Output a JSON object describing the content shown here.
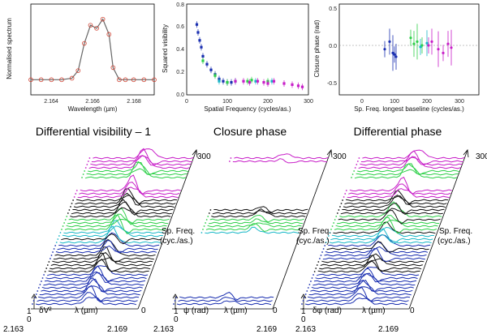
{
  "colors": {
    "spectrum": "#d04030",
    "blue": "#1a2fb0",
    "cyan": "#1bb8c8",
    "green": "#2fd04a",
    "magenta": "#c81ec8",
    "black": "#111111",
    "red": "#d02a10"
  },
  "chart_data": [
    {
      "type": "line",
      "title": "",
      "xlabel": "Wavelength (µm)",
      "ylabel": "Normalised spectrum",
      "xlim": [
        2.163,
        2.169
      ],
      "ylim": [
        0.95,
        1.25
      ],
      "xticks": [
        "2.164",
        "2.166",
        "2.168"
      ],
      "x": [
        2.163,
        2.1635,
        2.164,
        2.1645,
        2.165,
        2.1653,
        2.1656,
        2.1659,
        2.1662,
        2.1665,
        2.1668,
        2.167,
        2.1673,
        2.1676,
        2.168,
        2.1685,
        2.169
      ],
      "y": [
        1.0,
        1.0,
        1.0,
        1.0,
        1.005,
        1.03,
        1.12,
        1.18,
        1.17,
        1.2,
        1.15,
        1.04,
        1.0,
        1.0,
        1.0,
        1.0,
        1.0
      ]
    },
    {
      "type": "scatter",
      "title": "",
      "xlabel": "Spatial Frequency (cycles/as.)",
      "ylabel": "Squared visibility",
      "xlim": [
        0,
        300
      ],
      "ylim": [
        0,
        0.8
      ],
      "xticks": [
        "0",
        "100",
        "200",
        "300"
      ],
      "yticks": [
        "0.0",
        "0.2",
        "0.4",
        "0.6",
        "0.8"
      ],
      "series": [
        {
          "name": "blue",
          "x": [
            25,
            28,
            32,
            36,
            40,
            50,
            60,
            70,
            80,
            90,
            100,
            110
          ],
          "y": [
            0.62,
            0.55,
            0.48,
            0.42,
            0.34,
            0.27,
            0.22,
            0.18,
            0.14,
            0.12,
            0.11,
            0.11
          ]
        },
        {
          "name": "green",
          "x": [
            40,
            70,
            100,
            150,
            160,
            200
          ],
          "y": [
            0.3,
            0.17,
            0.11,
            0.12,
            0.13,
            0.12
          ]
        },
        {
          "name": "cyan",
          "x": [
            80,
            120,
            170,
            210
          ],
          "y": [
            0.12,
            0.12,
            0.12,
            0.12
          ]
        },
        {
          "name": "magenta",
          "x": [
            120,
            140,
            155,
            175,
            190,
            200,
            215,
            240,
            260,
            275,
            285
          ],
          "y": [
            0.12,
            0.12,
            0.11,
            0.12,
            0.11,
            0.1,
            0.12,
            0.1,
            0.09,
            0.08,
            0.07
          ]
        }
      ]
    },
    {
      "type": "scatter",
      "title": "",
      "xlabel": "Sp. Freq. longest baseline (cycles/as.)",
      "ylabel": "Closure phase (rad)",
      "xlim": [
        0,
        300
      ],
      "ylim": [
        -0.6,
        0.6
      ],
      "xticks": [
        "0",
        "100",
        "200",
        "300"
      ],
      "yticks": [
        "-0.5",
        "0.0",
        "0.5"
      ],
      "series": [
        {
          "name": "blue",
          "x": [
            70,
            85,
            95,
            100,
            105
          ],
          "y": [
            -0.05,
            0.05,
            -0.1,
            -0.12,
            -0.15
          ]
        },
        {
          "name": "green",
          "x": [
            150,
            160,
            170,
            185
          ],
          "y": [
            0.1,
            0.02,
            0.05,
            0.0
          ]
        },
        {
          "name": "cyan",
          "x": [
            180,
            200
          ],
          "y": [
            -0.02,
            0.03
          ]
        },
        {
          "name": "magenta",
          "x": [
            205,
            215,
            235,
            250,
            265,
            275
          ],
          "y": [
            0.0,
            0.05,
            -0.05,
            -0.1,
            0.02,
            -0.03
          ]
        }
      ]
    },
    {
      "type": "line",
      "title": "Differential visibility – 1",
      "xlabel": "λ (µm)",
      "ylabel": "δV²",
      "axis_min_label": "2.163",
      "axis_max_label": "2.169",
      "y_top": "1",
      "y_bottom": "0",
      "freq_axis_label": "Sp. Freq.",
      "freq_axis_unit": "(cyc./as.)",
      "freq_top": "300",
      "freq_bottom": "0"
    },
    {
      "type": "line",
      "title": "Closure phase",
      "xlabel": "λ (µm)",
      "ylabel": "ψ (rad)",
      "axis_min_label": "2.163",
      "axis_max_label": "2.169",
      "y_top": "1",
      "y_bottom": "0",
      "freq_axis_label": "Sp. Freq.",
      "freq_axis_unit": "(cyc./as.)",
      "freq_top": "300",
      "freq_bottom": "0"
    },
    {
      "type": "line",
      "title": "Differential phase",
      "xlabel": "λ (µm)",
      "ylabel": "δφ (rad)",
      "axis_min_label": "2.163",
      "axis_max_label": "2.169",
      "y_top": "1",
      "y_bottom": "0",
      "freq_axis_label": "Sp. Freq.",
      "freq_axis_unit": "(cyc./as.)",
      "freq_top": "300",
      "freq_bottom": "0"
    }
  ]
}
